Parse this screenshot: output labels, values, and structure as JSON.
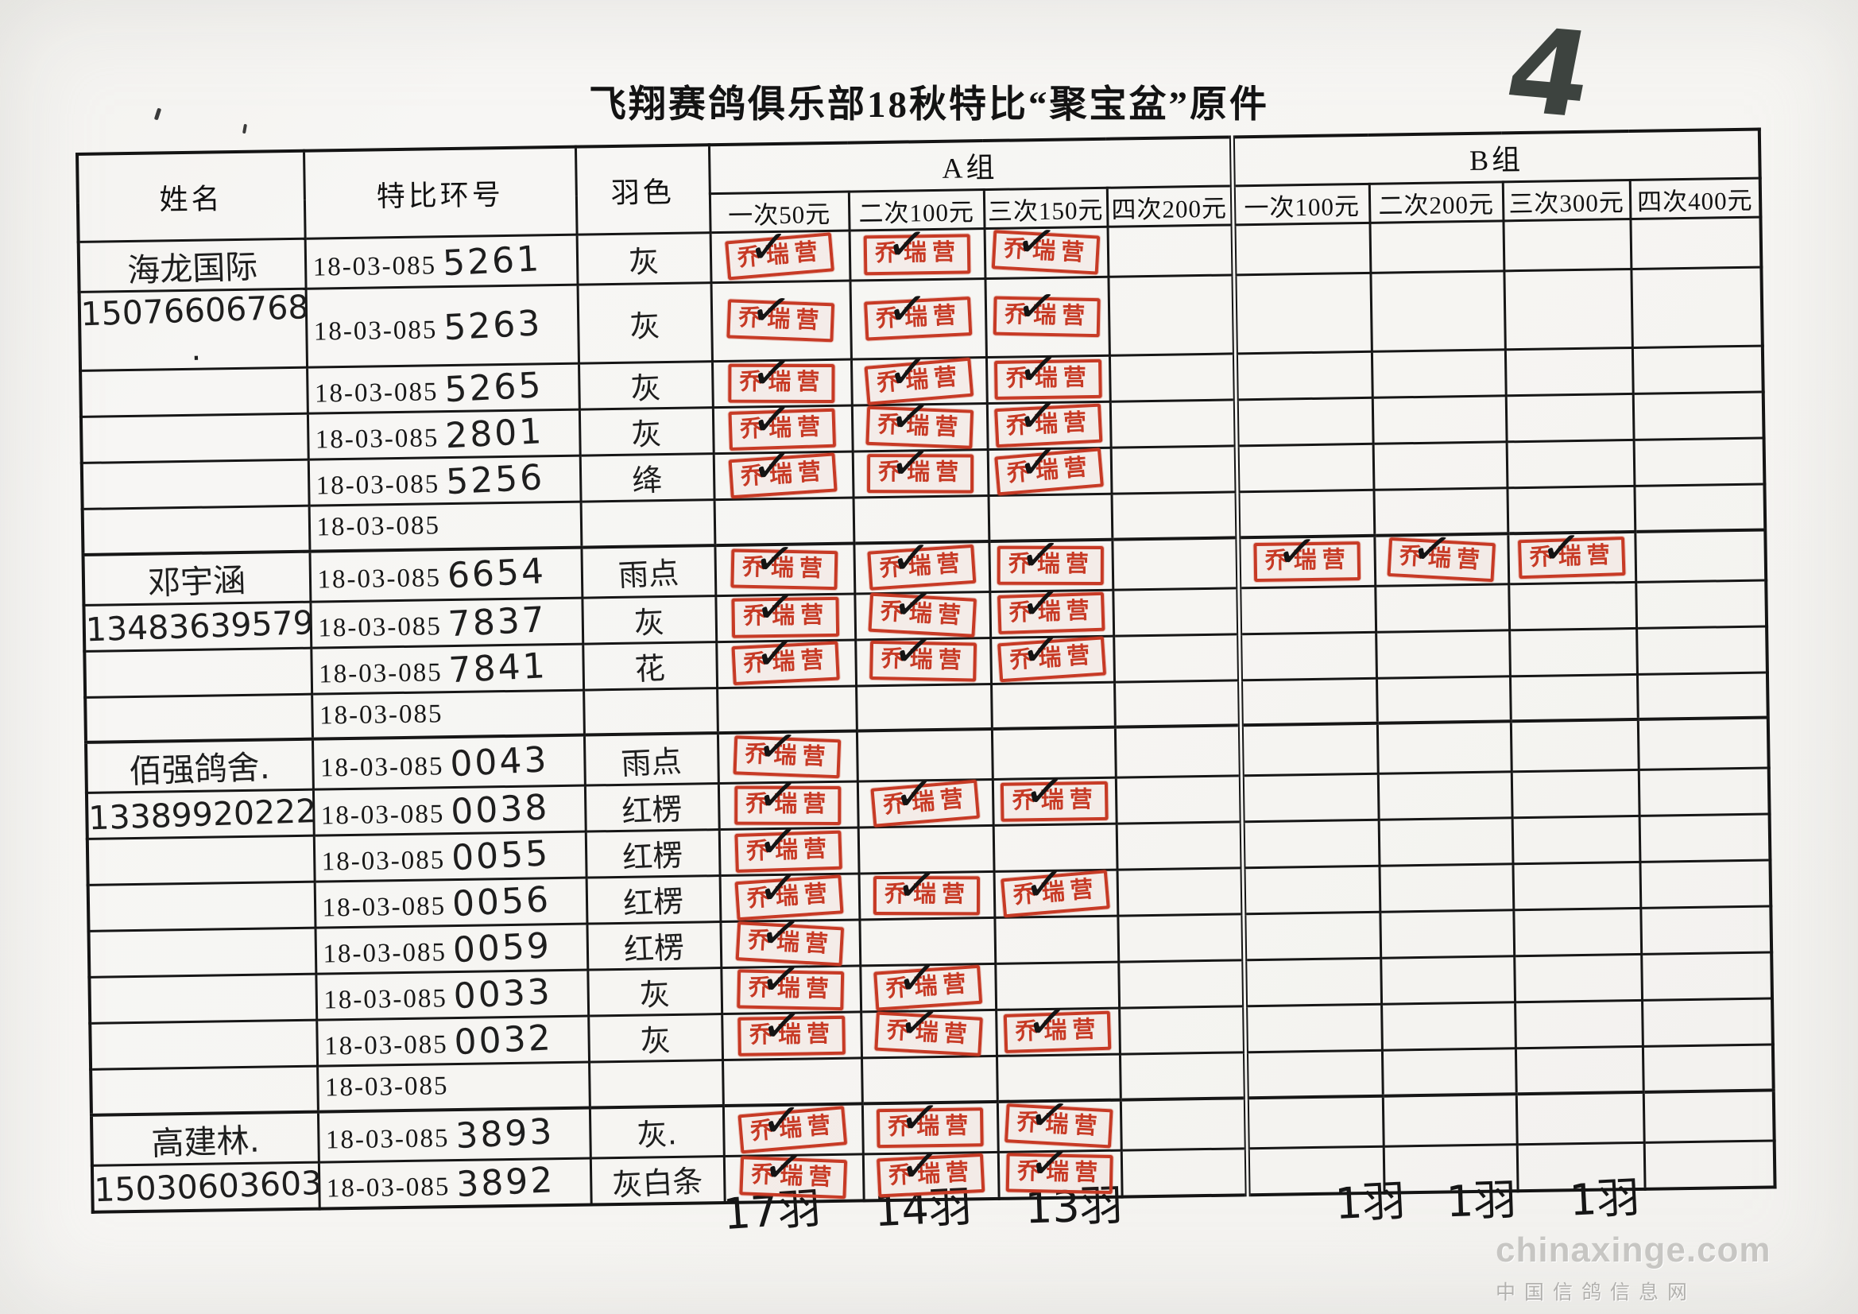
{
  "page": {
    "title": "飞翔赛鸽俱乐部18秋特比“聚宝盆”原件",
    "page_number": "4",
    "watermark_line1": "chinaxinge.com",
    "watermark_line2": "中国信鸽信息网"
  },
  "colors": {
    "stamp_red": "#c73a25",
    "ink_black": "#1a1a1a",
    "paper": "#f6f5f2"
  },
  "table": {
    "headers": {
      "name": "姓名",
      "ring": "特比环号",
      "color": "羽色",
      "group_a": "A组",
      "group_b": "B组",
      "a_cols": [
        "一次50元",
        "二次100元",
        "三次150元",
        "四次200元"
      ],
      "b_cols": [
        "一次100元",
        "二次200元",
        "三次300元",
        "四次400元"
      ]
    },
    "ring_prefix": "18-03-085",
    "stamp_text": "乔瑞营",
    "check_glyph": "✓",
    "rows": [
      {
        "name": "海龙国际",
        "ring_suffix": "5261",
        "color": "灰",
        "stamps": [
          "a1",
          "a2",
          "a3"
        ]
      },
      {
        "name": "15076606768 .",
        "ring_suffix": "5263",
        "color": "灰",
        "stamps": [
          "a1",
          "a2",
          "a3"
        ]
      },
      {
        "name": "",
        "ring_suffix": "5265",
        "color": "灰",
        "stamps": [
          "a1",
          "a2",
          "a3"
        ]
      },
      {
        "name": "",
        "ring_suffix": "2801",
        "color": "灰",
        "stamps": [
          "a1",
          "a2",
          "a3"
        ]
      },
      {
        "name": "",
        "ring_suffix": "5256",
        "color": "绛",
        "stamps": [
          "a1",
          "a2",
          "a3"
        ]
      },
      {
        "name": "",
        "ring_suffix": "",
        "color": "",
        "stamps": []
      },
      {
        "name": "邓宇涵",
        "ring_suffix": "6654",
        "color": "雨点",
        "stamps": [
          "a1",
          "a2",
          "a3",
          "b1",
          "b2",
          "b3"
        ]
      },
      {
        "name": "13483639579",
        "ring_suffix": "7837",
        "color": "灰",
        "stamps": [
          "a1",
          "a2",
          "a3"
        ]
      },
      {
        "name": "",
        "ring_suffix": "7841",
        "color": "花",
        "stamps": [
          "a1",
          "a2",
          "a3"
        ]
      },
      {
        "name": "",
        "ring_suffix": "",
        "color": "",
        "stamps": []
      },
      {
        "name": "佰强鸽舍.",
        "ring_suffix": "0043",
        "color": "雨点",
        "stamps": [
          "a1"
        ]
      },
      {
        "name": "13389920222",
        "ring_suffix": "0038",
        "color": "红楞",
        "stamps": [
          "a1",
          "a2",
          "a3"
        ]
      },
      {
        "name": "",
        "ring_suffix": "0055",
        "color": "红楞",
        "stamps": [
          "a1"
        ]
      },
      {
        "name": "",
        "ring_suffix": "0056",
        "color": "红楞",
        "stamps": [
          "a1",
          "a2",
          "a3"
        ]
      },
      {
        "name": "",
        "ring_suffix": "0059",
        "color": "红楞",
        "stamps": [
          "a1"
        ]
      },
      {
        "name": "",
        "ring_suffix": "0033",
        "color": "灰",
        "stamps": [
          "a1",
          "a2"
        ]
      },
      {
        "name": "",
        "ring_suffix": "0032",
        "color": "灰",
        "stamps": [
          "a1",
          "a2",
          "a3"
        ]
      },
      {
        "name": "",
        "ring_suffix": "",
        "color": "",
        "stamps": []
      },
      {
        "name": "高建林.",
        "ring_suffix": "3893",
        "color": "灰.",
        "stamps": [
          "a1",
          "a2",
          "a3"
        ]
      },
      {
        "name": "15030603603",
        "ring_suffix": "3892",
        "color": "灰白条",
        "stamps": [
          "a1",
          "a2",
          "a3"
        ]
      }
    ],
    "totals": {
      "a1": "17羽",
      "a2": "14羽",
      "a3": "13羽",
      "b1": "1羽",
      "b2": "1羽",
      "b3": "1羽"
    }
  }
}
